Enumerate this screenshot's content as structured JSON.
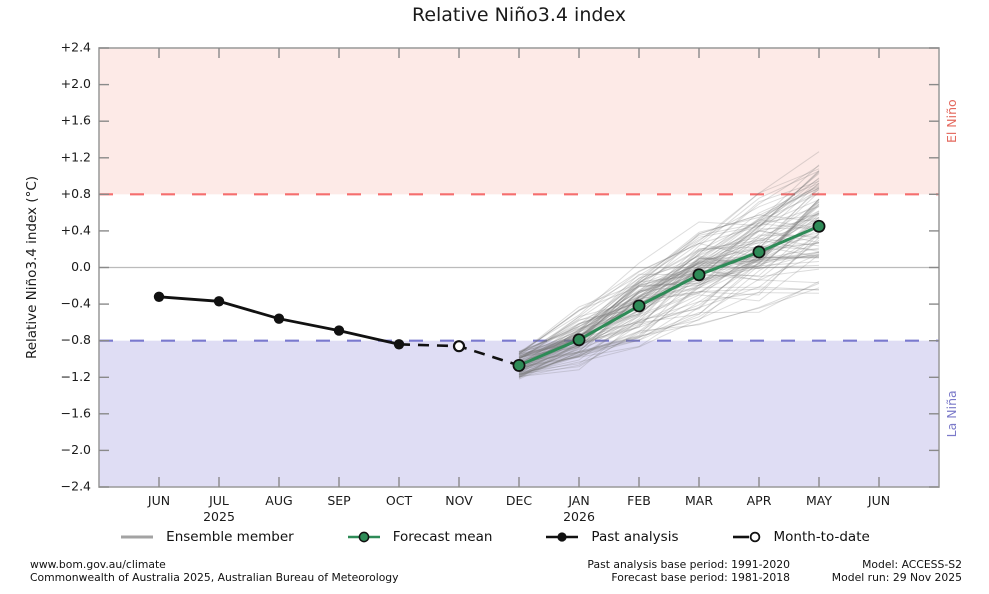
{
  "title": "Relative Niño3.4 index",
  "chart_data": {
    "type": "line",
    "title": "Relative Niño3.4 index",
    "ylabel": "Relative Niño3.4 index (°C)",
    "ylim": [
      -2.4,
      2.4
    ],
    "ytick_step": 0.4,
    "grid": false,
    "months": [
      "JUN",
      "JUL",
      "AUG",
      "SEP",
      "OCT",
      "NOV",
      "DEC",
      "JAN",
      "FEB",
      "MAR",
      "APR",
      "MAY",
      "JUN"
    ],
    "year_labels": [
      {
        "month_index": 1,
        "label": "2025"
      },
      {
        "month_index": 7,
        "label": "2026"
      }
    ],
    "bands": {
      "el_nino": {
        "label": "El Niño",
        "threshold": 0.8
      },
      "la_nina": {
        "label": "La Niña",
        "threshold": -0.8
      }
    },
    "series": [
      {
        "name": "Past analysis",
        "month_indices": [
          0,
          1,
          2,
          3,
          4
        ],
        "values": [
          -0.32,
          -0.37,
          -0.56,
          -0.69,
          -0.84
        ]
      },
      {
        "name": "Month-to-date",
        "month_indices": [
          5
        ],
        "values": [
          -0.86
        ]
      },
      {
        "name": "Forecast mean",
        "month_indices": [
          6,
          7,
          8,
          9,
          10,
          11
        ],
        "values": [
          -1.07,
          -0.79,
          -0.42,
          -0.08,
          0.17,
          0.45
        ]
      }
    ],
    "connector_dashed": {
      "month_indices": [
        4,
        5,
        6
      ],
      "values": [
        -0.84,
        -0.86,
        -1.07
      ]
    },
    "ensemble": {
      "name": "Ensemble member",
      "count": 99,
      "month_indices": [
        6,
        7,
        8,
        9,
        10,
        11
      ],
      "mean": [
        -1.07,
        -0.79,
        -0.42,
        -0.08,
        0.17,
        0.45
      ],
      "spread": [
        0.14,
        0.24,
        0.32,
        0.38,
        0.43,
        0.48
      ],
      "seed": 42
    }
  },
  "legend": {
    "items": [
      {
        "key": "ensemble",
        "label": "Ensemble member"
      },
      {
        "key": "forecast",
        "label": "Forecast mean"
      },
      {
        "key": "past",
        "label": "Past analysis"
      },
      {
        "key": "mtd",
        "label": "Month-to-date"
      }
    ]
  },
  "footer": {
    "left_line1": "www.bom.gov.au/climate",
    "left_line2": "Commonwealth of Australia 2025, Australian Bureau of Meteorology",
    "mid_line1": "Past analysis base period: 1991-2020",
    "mid_line2": "Forecast base period: 1981-2018",
    "right_line1": "Model: ACCESS-S2",
    "right_line2": "Model run: 29 Nov 2025"
  },
  "colors": {
    "el_nino_band": "#fdeae7",
    "la_nina_band": "#dfddf4",
    "el_nino_line": "#f56e6e",
    "la_nina_line": "#7a79ce",
    "el_nino_text": "#e4695e",
    "la_nina_text": "#7b7ac9",
    "forecast": "#2e8b57",
    "past": "#111111",
    "ensemble": "#787878",
    "zero_line": "#bbbbbb",
    "frame": "#9e9e9e",
    "tick": "#8a8a8a",
    "text": "#1a1a1a"
  }
}
